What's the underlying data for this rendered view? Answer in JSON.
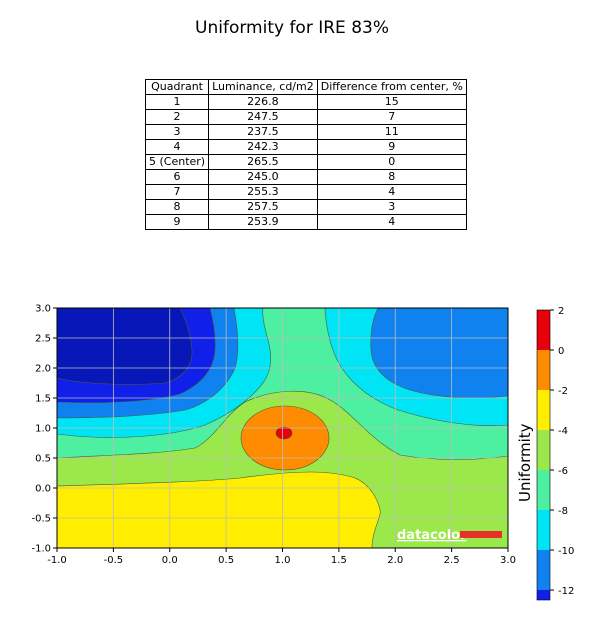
{
  "title": "Uniformity for IRE 83%",
  "table": {
    "headers": [
      "Quadrant",
      "Luminance, cd/m2",
      "Difference from center, %"
    ],
    "rows": [
      [
        "1",
        "226.8",
        "15"
      ],
      [
        "2",
        "247.5",
        "7"
      ],
      [
        "3",
        "237.5",
        "11"
      ],
      [
        "4",
        "242.3",
        "9"
      ],
      [
        "5 (Center)",
        "265.5",
        "0"
      ],
      [
        "6",
        "245.0",
        "8"
      ],
      [
        "7",
        "255.3",
        "4"
      ],
      [
        "8",
        "257.5",
        "3"
      ],
      [
        "9",
        "253.9",
        "4"
      ]
    ]
  },
  "chart_data": {
    "type": "heatmap",
    "subtype": "filled-contour",
    "xlim": [
      -1.0,
      3.0
    ],
    "ylim": [
      -1.0,
      3.0
    ],
    "x_ticks": [
      "-1.0",
      "-0.5",
      "0.0",
      "0.5",
      "1.0",
      "1.5",
      "2.0",
      "2.5",
      "3.0"
    ],
    "y_ticks": [
      "-1.0",
      "-0.5",
      "0.0",
      "0.5",
      "1.0",
      "1.5",
      "2.0",
      "2.5",
      "3.0"
    ],
    "grid": true,
    "colorbar": {
      "label": "Uniformity",
      "ticks": [
        "2",
        "0",
        "-2",
        "-4",
        "-6",
        "-8",
        "-10",
        "-12"
      ],
      "levels": [
        {
          "from": 0,
          "to": 2,
          "color": "#e8000b"
        },
        {
          "from": -2,
          "to": 0,
          "color": "#ff8c00"
        },
        {
          "from": -4,
          "to": -2,
          "color": "#ffee00"
        },
        {
          "from": -6,
          "to": -4,
          "color": "#9be84a"
        },
        {
          "from": -8,
          "to": -6,
          "color": "#4cf0a0"
        },
        {
          "from": -10,
          "to": -8,
          "color": "#00e5f5"
        },
        {
          "from": -12,
          "to": -10,
          "color": "#0f82f0"
        },
        {
          "from": -12.5,
          "to": -12,
          "color": "#1020e8"
        }
      ]
    },
    "deep_color": "#0818b8",
    "watermark": "datacolor",
    "watermark_color": "#e8302a"
  }
}
